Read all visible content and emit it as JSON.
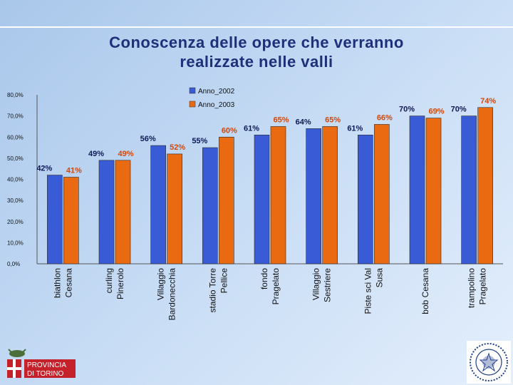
{
  "title_line1": "Conoscenza delle opere che verranno",
  "title_line2": "realizzate nelle valli",
  "colors": {
    "series_2002": "#3a5bd6",
    "series_2003": "#ea6a12",
    "label_2002": "#0e1a55",
    "label_2003": "#d4480b"
  },
  "logo": {
    "line1": "PROVINCIA",
    "line2": "DI TORINO"
  },
  "chart_data": {
    "type": "bar",
    "title": "Conoscenza delle opere che verranno realizzate nelle valli",
    "categories": [
      [
        "biathlon",
        "Cesana"
      ],
      [
        "curling",
        "Pinerolo"
      ],
      [
        "Villaggio",
        "Bardonecchia"
      ],
      [
        "stadio Torre",
        "Pellice"
      ],
      [
        "fondo",
        "Pragelato"
      ],
      [
        "Villaggio",
        "Sestriere"
      ],
      [
        "Piste sci Val",
        "Susa"
      ],
      [
        "bob Cesana"
      ],
      [
        "trampolino",
        "Pragelato"
      ]
    ],
    "series": [
      {
        "name": "Anno_2002",
        "values": [
          42,
          49,
          56,
          55,
          61,
          64,
          61,
          70,
          70
        ],
        "labels": [
          "42%",
          "49%",
          "56%",
          "55%",
          "61%",
          "64%",
          "61%",
          "70%",
          "70%"
        ]
      },
      {
        "name": "Anno_2003",
        "values": [
          41,
          49,
          52,
          60,
          65,
          65,
          66,
          69,
          74
        ],
        "labels": [
          "41%",
          "49%",
          "52%",
          "60%",
          "65%",
          "65%",
          "66%",
          "69%",
          "74%"
        ]
      }
    ],
    "yticks": [
      "0,0%",
      "10,0%",
      "20,0%",
      "30,0%",
      "40,0%",
      "50,0%",
      "60,0%",
      "70,0%",
      "80,0%"
    ],
    "ylim": [
      0,
      80
    ],
    "legend_position": "top-right"
  }
}
